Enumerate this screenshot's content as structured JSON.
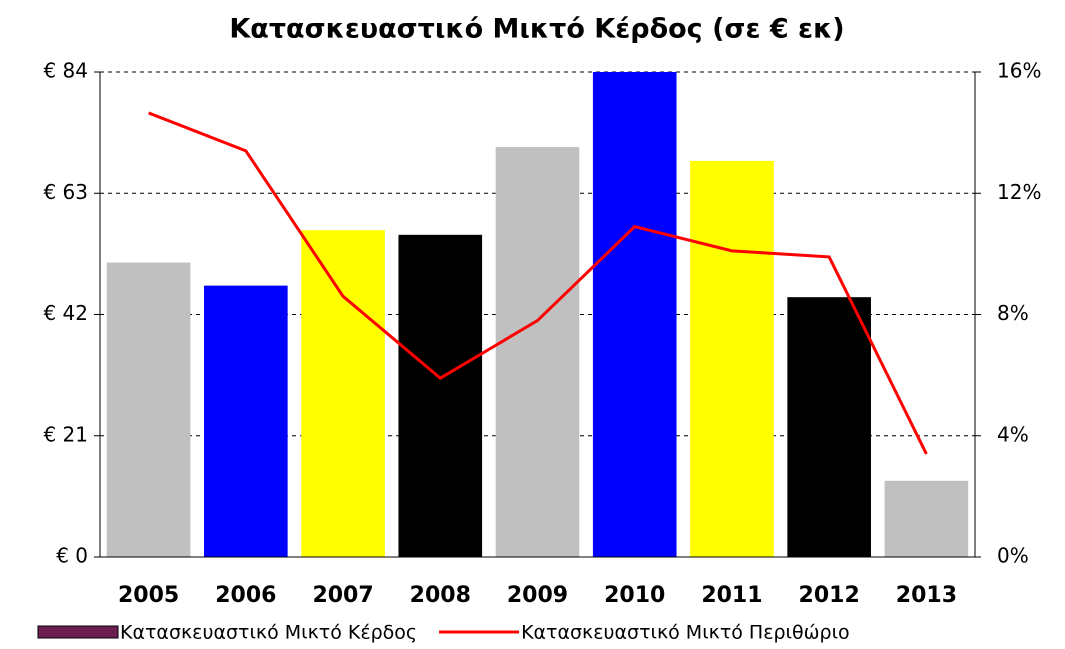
{
  "chart_data": {
    "type": "bar",
    "title": "Κατασκευαστικό Μικτό Κέρδος (σε € εκ)",
    "categories": [
      "2005",
      "2006",
      "2007",
      "2008",
      "2009",
      "2010",
      "2011",
      "2012",
      "2013"
    ],
    "series": [
      {
        "name": "Κατασκευαστικό Μικτό Κέρδος",
        "type": "bar",
        "color": "#6b1f4f",
        "colors": [
          "#c0c0c0",
          "#0000ff",
          "#ffff00",
          "#000000",
          "#c0c0c0",
          "#0000ff",
          "#ffff00",
          "#000000",
          "#c0c0c0"
        ],
        "values": [
          51,
          47,
          56.6,
          55.8,
          71,
          84,
          68.6,
          45,
          13.2
        ]
      },
      {
        "name": "Κατασκευαστικό Μικτό Περιθώριο",
        "type": "line",
        "color": "#ff0000",
        "axis": "y2",
        "values": [
          14.65,
          13.4,
          8.6,
          5.9,
          7.8,
          10.9,
          10.1,
          9.9,
          3.4
        ]
      }
    ],
    "ylim": [
      0,
      84
    ],
    "yticks": [
      {
        "value": 0,
        "label": "€ 0"
      },
      {
        "value": 21,
        "label": "€ 21"
      },
      {
        "value": 42,
        "label": "€ 42"
      },
      {
        "value": 63,
        "label": "€ 63"
      },
      {
        "value": 84,
        "label": "€ 84"
      }
    ],
    "y2lim": [
      0,
      16
    ],
    "y2ticks": [
      {
        "value": 0,
        "label": "0%"
      },
      {
        "value": 4,
        "label": "4%"
      },
      {
        "value": 8,
        "label": "8%"
      },
      {
        "value": 12,
        "label": "12%"
      },
      {
        "value": 16,
        "label": "16%"
      }
    ],
    "grid": true,
    "legend": "bottom"
  }
}
